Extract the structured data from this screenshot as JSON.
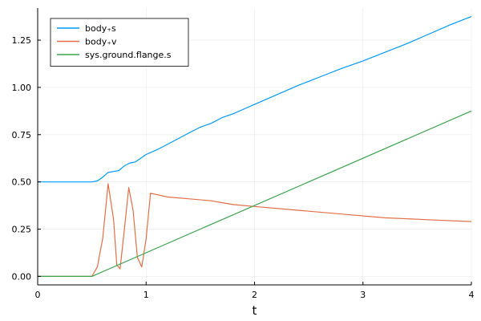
{
  "chart_data": {
    "type": "line",
    "title": "",
    "xlabel": "t",
    "ylabel": "",
    "xlim": [
      0,
      4
    ],
    "ylim": [
      -0.045,
      1.42
    ],
    "xticks": [
      0,
      1,
      2,
      3,
      4
    ],
    "xtick_labels": [
      "0",
      "1",
      "2",
      "3",
      "4"
    ],
    "yticks": [
      0,
      0.25,
      0.5,
      0.75,
      1.0,
      1.25
    ],
    "ytick_labels": [
      "0.00",
      "0.25",
      "0.50",
      "0.75",
      "1.00",
      "1.25"
    ],
    "grid": true,
    "legend_position": "top-left",
    "series": [
      {
        "name": "body₊s",
        "color": "#009af9",
        "x": [
          0,
          0.5,
          0.55,
          0.6,
          0.65,
          0.7,
          0.75,
          0.8,
          0.85,
          0.9,
          1.0,
          1.1,
          1.2,
          1.3,
          1.4,
          1.5,
          1.6,
          1.7,
          1.8,
          1.9,
          2.0,
          2.2,
          2.4,
          2.6,
          2.8,
          3.0,
          3.2,
          3.4,
          3.6,
          3.8,
          4.0
        ],
        "y": [
          0.5,
          0.5,
          0.505,
          0.525,
          0.55,
          0.555,
          0.56,
          0.585,
          0.6,
          0.605,
          0.645,
          0.67,
          0.7,
          0.73,
          0.76,
          0.79,
          0.81,
          0.84,
          0.86,
          0.885,
          0.91,
          0.96,
          1.01,
          1.055,
          1.1,
          1.14,
          1.185,
          1.23,
          1.28,
          1.33,
          1.375
        ]
      },
      {
        "name": "body₊v",
        "color": "#e26f46",
        "x": [
          0,
          0.5,
          0.55,
          0.6,
          0.65,
          0.7,
          0.73,
          0.76,
          0.8,
          0.84,
          0.88,
          0.92,
          0.96,
          1.0,
          1.04,
          1.2,
          1.4,
          1.6,
          1.8,
          2.0,
          2.4,
          2.8,
          3.2,
          3.6,
          4.0
        ],
        "y": [
          0,
          0,
          0.05,
          0.2,
          0.49,
          0.3,
          0.06,
          0.04,
          0.25,
          0.47,
          0.35,
          0.1,
          0.05,
          0.2,
          0.44,
          0.42,
          0.41,
          0.4,
          0.38,
          0.37,
          0.35,
          0.33,
          0.31,
          0.3,
          0.29
        ]
      },
      {
        "name": "sys.ground.flange.s",
        "color": "#3da44d",
        "x": [
          0,
          0.5,
          4.0
        ],
        "y": [
          0,
          0,
          0.875
        ]
      }
    ]
  }
}
